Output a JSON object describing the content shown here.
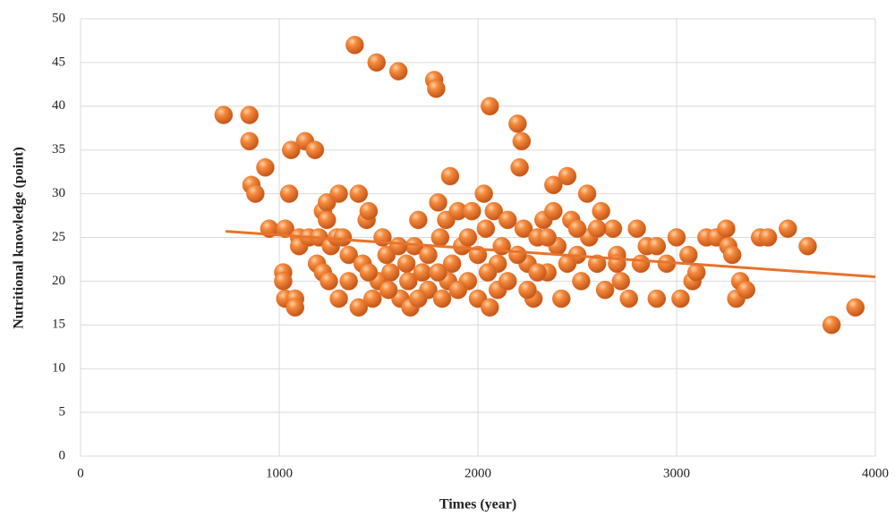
{
  "chart_data": {
    "type": "scatter",
    "x_label": "Times (year)",
    "y_label": "Nutritional knowledge (point)",
    "xlim": [
      0,
      4000
    ],
    "xticks": [
      0,
      1000,
      2000,
      3000,
      4000
    ],
    "ylim": [
      0,
      50
    ],
    "yticks": [
      0,
      5,
      10,
      15,
      20,
      25,
      30,
      35,
      40,
      45,
      50
    ],
    "grid": true,
    "color": "#e8722a",
    "trendline": {
      "color": "#e8732c",
      "x": [
        730,
        4000
      ],
      "y": [
        25.7,
        20.5
      ]
    },
    "x": [
      720,
      850,
      850,
      860,
      880,
      930,
      950,
      1030,
      1020,
      1020,
      1030,
      1060,
      1050,
      1080,
      1080,
      1130,
      1180,
      1100,
      1100,
      1150,
      1200,
      1190,
      1220,
      1220,
      1240,
      1240,
      1260,
      1290,
      1300,
      1300,
      1320,
      1350,
      1380,
      1400,
      1400,
      1420,
      1440,
      1450,
      1470,
      1490,
      1500,
      1520,
      1540,
      1560,
      1600,
      1610,
      1640,
      1660,
      1680,
      1700,
      1720,
      1750,
      1780,
      1790,
      1800,
      1810,
      1820,
      1840,
      1860,
      1870,
      1900,
      1920,
      1950,
      1970,
      2000,
      2030,
      2040,
      2060,
      2060,
      2080,
      2100,
      2120,
      2150,
      2200,
      2210,
      2220,
      2230,
      2250,
      2280,
      2300,
      2330,
      2350,
      2380,
      2380,
      2400,
      2420,
      2450,
      2470,
      2500,
      2520,
      2550,
      2560,
      2600,
      2620,
      2640,
      2680,
      2700,
      2720,
      2760,
      2800,
      2820,
      2850,
      2900,
      2900,
      2950,
      3000,
      3020,
      3060,
      3080,
      3100,
      3150,
      3200,
      3250,
      3260,
      3280,
      3300,
      3320,
      3350,
      3420,
      3460,
      3560,
      3660,
      3780,
      3900,
      1550,
      1600,
      1650,
      1750,
      1850,
      1900,
      2000,
      2050,
      2100,
      2150,
      2200,
      2250,
      2300,
      2350,
      2450,
      2500,
      2600,
      2700,
      1950,
      1800,
      1700,
      1350,
      1450,
      1250
    ],
    "y": [
      39,
      39,
      36,
      31,
      30,
      33,
      26,
      26,
      21,
      20,
      18,
      35,
      30,
      18,
      17,
      36,
      35,
      25,
      24,
      25,
      25,
      22,
      21,
      28,
      29,
      27,
      24,
      25,
      30,
      18,
      25,
      23,
      47,
      30,
      17,
      22,
      27,
      28,
      18,
      45,
      20,
      25,
      23,
      21,
      44,
      18,
      22,
      17,
      24,
      27,
      21,
      19,
      43,
      42,
      29,
      25,
      18,
      27,
      32,
      22,
      28,
      24,
      20,
      28,
      18,
      30,
      26,
      40,
      17,
      28,
      22,
      24,
      27,
      38,
      33,
      36,
      26,
      22,
      18,
      25,
      27,
      21,
      31,
      28,
      24,
      18,
      32,
      27,
      23,
      20,
      30,
      25,
      22,
      28,
      19,
      26,
      23,
      20,
      18,
      26,
      22,
      24,
      18,
      24,
      22,
      25,
      18,
      23,
      20,
      21,
      25,
      25,
      26,
      24,
      23,
      18,
      20,
      19,
      25,
      25,
      26,
      24,
      15,
      17,
      19,
      24,
      20,
      23,
      20,
      19,
      23,
      21,
      19,
      20,
      23,
      19,
      21,
      25,
      22,
      26,
      26,
      22,
      25,
      21,
      18,
      20,
      21,
      20
    ]
  }
}
